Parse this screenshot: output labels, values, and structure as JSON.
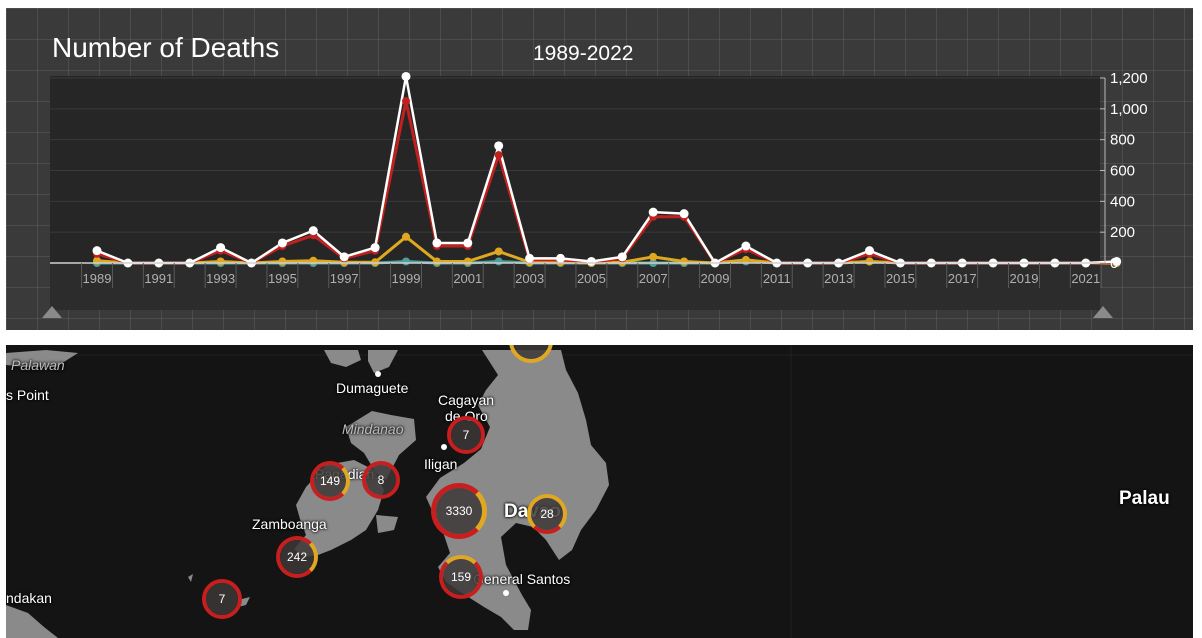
{
  "chart": {
    "title": "Number of Deaths",
    "subtitle": "1989-2022"
  },
  "chart_data": {
    "type": "line",
    "x": [
      1989,
      1990,
      1991,
      1992,
      1993,
      1994,
      1995,
      1996,
      1997,
      1998,
      1999,
      2000,
      2001,
      2002,
      2003,
      2004,
      2005,
      2006,
      2007,
      2008,
      2009,
      2010,
      2011,
      2012,
      2013,
      2014,
      2015,
      2016,
      2017,
      2018,
      2019,
      2020,
      2021,
      2022
    ],
    "x_tick_labels": [
      "1989",
      "1991",
      "1993",
      "1995",
      "1997",
      "1999",
      "2001",
      "2003",
      "2005",
      "2007",
      "2009",
      "2011",
      "2013",
      "2015",
      "2017",
      "2019",
      "2021"
    ],
    "y_tick_labels": [
      "0",
      "200",
      "400",
      "600",
      "800",
      "1,000",
      "1,200"
    ],
    "ylim": [
      0,
      1200
    ],
    "grid": true,
    "series": [
      {
        "color": "#ffffff",
        "values": [
          80,
          0,
          0,
          0,
          100,
          0,
          130,
          210,
          40,
          100,
          1210,
          130,
          130,
          760,
          30,
          30,
          10,
          40,
          330,
          320,
          0,
          110,
          0,
          0,
          0,
          80,
          0,
          0,
          0,
          0,
          0,
          0,
          0,
          10
        ]
      },
      {
        "color": "#c0201e",
        "values": [
          60,
          0,
          0,
          0,
          80,
          0,
          110,
          180,
          30,
          80,
          1050,
          110,
          110,
          700,
          20,
          20,
          5,
          30,
          300,
          300,
          0,
          90,
          0,
          0,
          0,
          60,
          0,
          0,
          0,
          0,
          0,
          0,
          0,
          5
        ]
      },
      {
        "color": "#e0a820",
        "values": [
          15,
          0,
          0,
          0,
          10,
          0,
          10,
          15,
          5,
          5,
          170,
          10,
          10,
          75,
          5,
          5,
          0,
          5,
          40,
          10,
          0,
          20,
          0,
          0,
          0,
          10,
          0,
          0,
          0,
          0,
          0,
          0,
          0,
          0
        ]
      },
      {
        "color": "#4f9f9a",
        "values": [
          0,
          0,
          0,
          0,
          0,
          0,
          0,
          0,
          0,
          0,
          10,
          0,
          0,
          10,
          0,
          0,
          0,
          0,
          0,
          0,
          0,
          10,
          0,
          0,
          0,
          10,
          0,
          0,
          0,
          0,
          0,
          0,
          0,
          0
        ]
      }
    ]
  },
  "map": {
    "labels": {
      "dumaguete": "Dumaguete",
      "cagayan_line1": "Cagayan",
      "cagayan_line2": "de Oro",
      "iligan": "Iligan",
      "zamboanga": "Zamboanga",
      "general_santos": "General Santos",
      "davao": "Davao",
      "palau": "Palau",
      "point": "s Point",
      "sandakan": "ndakan",
      "pagadian": "Pagadian",
      "palawan": "Palawan",
      "mindanao": "Mindanao"
    },
    "clusters": [
      {
        "count": "7"
      },
      {
        "count": "149"
      },
      {
        "count": "8"
      },
      {
        "count": "3330"
      },
      {
        "count": "28"
      },
      {
        "count": "242"
      },
      {
        "count": "159"
      },
      {
        "count": "7"
      },
      {
        "count": ""
      }
    ]
  }
}
